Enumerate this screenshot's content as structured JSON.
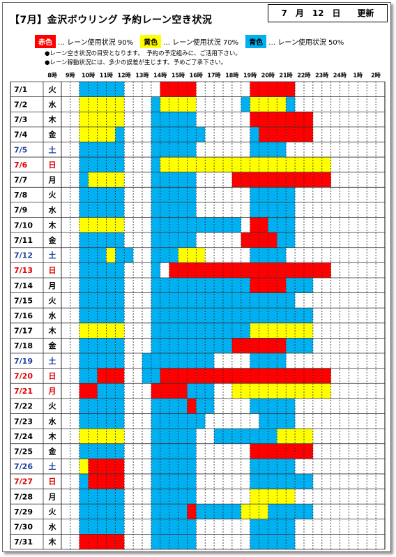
{
  "header": {
    "title": "【7月】金沢ボウリング 予約レーン空き状況",
    "updated": "7　月　12　日　　更新"
  },
  "legend": [
    {
      "tag": "赤色",
      "text": "… レーン使用状況 90%",
      "code": "r",
      "color": "#ff0000",
      "text_color": "#ffffff"
    },
    {
      "tag": "黄色",
      "text": "… レーン使用状況 70%",
      "code": "y",
      "color": "#ffff00",
      "text_color": "#000000"
    },
    {
      "tag": "青色",
      "text": "… レーン使用状況 50%",
      "code": "b",
      "color": "#00b0f0",
      "text_color": "#000000"
    }
  ],
  "notes": [
    "●レーン空き状況の目安となります。　予約の予定組みに、ご活用下さい。",
    "●レーン稼動状況には、多少の誤差が生じます。予めご了承下さい。"
  ],
  "table": {
    "hours": [
      "8時",
      "9時",
      "10時",
      "11時",
      "12時",
      "13時",
      "14時",
      "15時",
      "16時",
      "17時",
      "18時",
      "19時",
      "20時",
      "21時",
      "22時",
      "23時",
      "24時",
      "1時",
      "2時"
    ],
    "rows": [
      {
        "date": "7/1",
        "day": "火",
        "color": "#000000",
        "cells": "wwbbbbbwwwwrrrrwwwwwwrrrrrwwwwwwwwww"
      },
      {
        "date": "7/2",
        "day": "水",
        "color": "#000000",
        "cells": "wwyyyyywwwbyyyywwwwwbyyyybwwwwwwwwww"
      },
      {
        "date": "7/3",
        "day": "木",
        "color": "#000000",
        "cells": "wwyyyyywwwbbbbbwwwwwwrrrrrrrwwwwwwww"
      },
      {
        "date": "7/4",
        "day": "金",
        "color": "#000000",
        "cells": "wwyyyybwwwbbbbbbwwwwwbrrrrrrwwwwwwww"
      },
      {
        "date": "7/5",
        "day": "土",
        "color": "#1f3f9e",
        "cells": "wwbbbbbwwwbbbbbwwwwwwbbbbwwwwwwwwwww"
      },
      {
        "date": "7/6",
        "day": "日",
        "color": "#e00000",
        "cells": "wwbbbbbwwwbyyyyyyyyyyyyyyyyyyywwwwww"
      },
      {
        "date": "7/7",
        "day": "月",
        "color": "#000000",
        "cells": "wwbyyyywwwbbbbbwwwwrrrrrrrrrrrwwwwww"
      },
      {
        "date": "7/8",
        "day": "火",
        "color": "#000000",
        "cells": "wwbbbbbwwwbbbbbwwwwwwbbbbbwwwwwwwwww"
      },
      {
        "date": "7/9",
        "day": "水",
        "color": "#000000",
        "cells": "wwbbbbbwwwbbbbbwwwwwwbbbbbwwwwwwwwww"
      },
      {
        "date": "7/10",
        "day": "木",
        "color": "#000000",
        "cells": "wwyyyyywwwbbbbbbbbbbwrrbbbwwwwwwwwww"
      },
      {
        "date": "7/11",
        "day": "金",
        "color": "#000000",
        "cells": "wwbbbbbwwwbbbbbwwwwwrrrrbbwwwwwwwwww"
      },
      {
        "date": "7/12",
        "day": "土",
        "color": "#1f3f9e",
        "cells": "wwbbbybbwwbbbyyywwwwwbbbbwwwwwwwwwww"
      },
      {
        "date": "7/13",
        "day": "日",
        "color": "#e00000",
        "cells": "wwbbbbbwwwbwrrrrrrrrrrrrrrrrrrwwwwww"
      },
      {
        "date": "7/14",
        "day": "月",
        "color": "#000000",
        "cells": "wwbbbbbwwwbbbbbbbbbbbrrrrbbbwwwwwwww"
      },
      {
        "date": "7/15",
        "day": "火",
        "color": "#000000",
        "cells": "wwbbbbbwwwbbbbbbbbbbbbbbbbwwwwwwwwww"
      },
      {
        "date": "7/16",
        "day": "水",
        "color": "#000000",
        "cells": "wwbbbbbwwwbbbbbbbbbbbbbbbbbbwwwwwwww"
      },
      {
        "date": "7/17",
        "day": "木",
        "color": "#000000",
        "cells": "wwyyyyywwwbbbbbbbbbbbyyyyyyywwwwwwww"
      },
      {
        "date": "7/18",
        "day": "金",
        "color": "#000000",
        "cells": "wwbbbbbwwwbbbbbbbbbrrrrrrbbbwwwwwwww"
      },
      {
        "date": "7/19",
        "day": "土",
        "color": "#1f3f9e",
        "cells": "wwbbbbbwwbbbbbbbbwwwwbbbbwwwwwwwwwww"
      },
      {
        "date": "7/20",
        "day": "日",
        "color": "#e00000",
        "cells": "wwbbrrrwwbbrrrrrrrrrrrrrrrrrrrwwwwww"
      },
      {
        "date": "7/21",
        "day": "月",
        "color": "#e00000",
        "cells": "wwrrbbbwwwrrrrbbbwwyyyyyyyyyyywwwwww"
      },
      {
        "date": "7/22",
        "day": "火",
        "color": "#000000",
        "cells": "wwbbbbbwwwbbbbrbbwwwwbbbbbwwwwwwwwww"
      },
      {
        "date": "7/23",
        "day": "水",
        "color": "#000000",
        "cells": "wwbbbbbwwwbbbbbbwwwwwwbbbbwwwwwwwwww"
      },
      {
        "date": "7/24",
        "day": "木",
        "color": "#000000",
        "cells": "wwyyyyywwwbbbbbwwbbbbbbbyyyywwwwwwww"
      },
      {
        "date": "7/25",
        "day": "金",
        "color": "#000000",
        "cells": "wwbbbbbwwwbbbbbwwwwwwrrrrrrrwwwwwwww"
      },
      {
        "date": "7/26",
        "day": "土",
        "color": "#1f3f9e",
        "cells": "wwyrrrrwwwbbbbbwwwwwwbbbbbwwwwwwwwww"
      },
      {
        "date": "7/27",
        "day": "日",
        "color": "#e00000",
        "cells": "wwbrrrrwwwbbbbbwwwwwwbbbbbbbwwwwwwww"
      },
      {
        "date": "7/28",
        "day": "月",
        "color": "#000000",
        "cells": "wwbbbbbwwwbbbbbwwwwwwyyyyywwwwwwwwww"
      },
      {
        "date": "7/29",
        "day": "火",
        "color": "#000000",
        "cells": "wwbbbbbwwwbbbbrbbbbbyyybbbbbwwwwwwww"
      },
      {
        "date": "7/30",
        "day": "水",
        "color": "#000000",
        "cells": "wwbbbbbwwwbbbbbwwwwwwbbbbbwwwwwwwwww"
      },
      {
        "date": "7/31",
        "day": "木",
        "color": "#000000",
        "cells": "wwrrrrrwwwbbbbbwwwwwwbbbbbwwwwwwwwww"
      }
    ]
  }
}
